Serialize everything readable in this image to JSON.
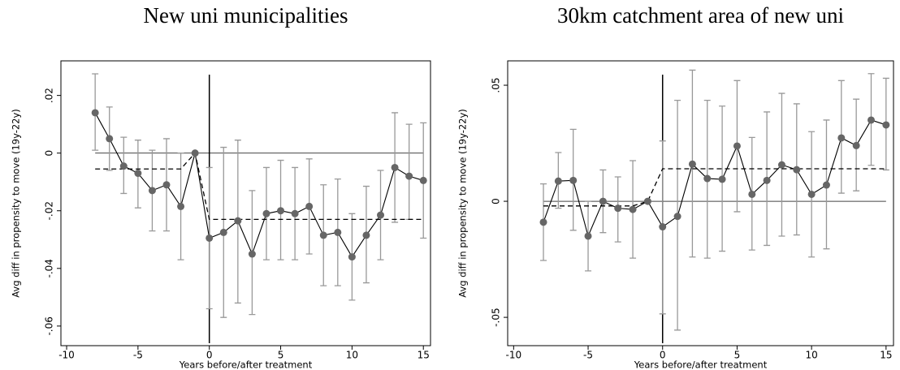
{
  "chart_data": [
    {
      "type": "line",
      "title": "New uni municipalities",
      "xlabel": "Years before/after treatment",
      "ylabel": "Avg diff in propensity to move (19y-22y)",
      "x": [
        -8,
        -7,
        -6,
        -5,
        -4,
        -3,
        -2,
        -1,
        0,
        1,
        2,
        3,
        4,
        5,
        6,
        7,
        8,
        9,
        10,
        11,
        12,
        13,
        14,
        15
      ],
      "values": [
        0.014,
        0.005,
        -0.0045,
        -0.007,
        -0.013,
        -0.011,
        -0.0185,
        0,
        -0.0295,
        -0.0275,
        -0.0235,
        -0.035,
        -0.021,
        -0.02,
        -0.021,
        -0.0185,
        -0.0285,
        -0.0275,
        -0.036,
        -0.0285,
        -0.0215,
        -0.005,
        -0.008,
        -0.0095
      ],
      "ci_low": [
        0.001,
        -0.006,
        -0.014,
        -0.019,
        -0.027,
        -0.027,
        -0.037,
        null,
        -0.054,
        -0.057,
        -0.052,
        -0.056,
        -0.037,
        -0.037,
        -0.037,
        -0.035,
        -0.046,
        -0.046,
        -0.051,
        -0.045,
        -0.037,
        -0.024,
        -0.023,
        -0.0295
      ],
      "ci_high": [
        0.0275,
        0.016,
        0.0055,
        0.0045,
        0.001,
        0.005,
        0,
        null,
        -0.005,
        0.002,
        0.0045,
        -0.013,
        -0.005,
        -0.0025,
        -0.005,
        -0.002,
        -0.011,
        -0.009,
        -0.021,
        -0.0115,
        -0.006,
        0.014,
        0.01,
        0.0105
      ],
      "fitted": [
        -0.0055,
        -0.0055,
        -0.0055,
        -0.0055,
        -0.0055,
        -0.0055,
        -0.0055,
        0,
        -0.023,
        -0.023,
        -0.023,
        -0.023,
        -0.023,
        -0.023,
        -0.023,
        -0.023,
        -0.023,
        -0.023,
        -0.023,
        -0.023,
        -0.023,
        -0.023,
        -0.023,
        -0.023
      ],
      "xline": 0,
      "yline": 0,
      "xlim": [
        -10.4,
        15.5
      ],
      "ylim": [
        -0.0668,
        0.032
      ],
      "xticks": [
        -10,
        -5,
        0,
        5,
        10,
        15
      ],
      "yticks": [
        {
          "value": 0.02,
          "label": ".02"
        },
        0,
        {
          "value": -0.02,
          "label": "-.02"
        },
        {
          "value": -0.04,
          "label": "-.04"
        },
        {
          "value": -0.06,
          "label": "-.06"
        }
      ],
      "color": "#666666"
    },
    {
      "type": "line",
      "title": "30km catchment area of new uni",
      "xlabel": "Years before/after treatment",
      "ylabel": "Avg diff in propensity to move (19y-22y)",
      "x": [
        -8,
        -7,
        -6,
        -5,
        -4,
        -3,
        -2,
        -1,
        0,
        1,
        2,
        3,
        4,
        5,
        6,
        7,
        8,
        9,
        10,
        11,
        12,
        13,
        14,
        15
      ],
      "values": [
        -0.009,
        0.0087,
        0.009,
        -0.015,
        0,
        -0.003,
        -0.0035,
        0,
        -0.011,
        -0.0065,
        0.016,
        0.0098,
        0.0095,
        0.0238,
        0.003,
        0.009,
        0.0157,
        0.0136,
        0.003,
        0.007,
        0.0273,
        0.024,
        0.035,
        0.0329
      ],
      "ci_low": [
        -0.0255,
        -0.003,
        -0.0125,
        -0.03,
        -0.0135,
        -0.0175,
        -0.0245,
        null,
        -0.0485,
        -0.0555,
        -0.024,
        -0.0245,
        -0.0215,
        -0.0045,
        -0.021,
        -0.019,
        -0.015,
        -0.0145,
        -0.024,
        -0.0205,
        0.0035,
        0.0045,
        0.0155,
        0.0135
      ],
      "ci_high": [
        0.0075,
        0.021,
        0.031,
        0,
        0.0135,
        0.0105,
        0.0175,
        null,
        0.026,
        0.0435,
        0.0565,
        0.0435,
        0.041,
        0.052,
        0.0275,
        0.0385,
        0.0465,
        0.042,
        0.03,
        0.035,
        0.052,
        0.044,
        0.055,
        0.053
      ],
      "fitted": [
        -0.002,
        -0.002,
        -0.002,
        -0.002,
        -0.002,
        -0.002,
        -0.002,
        0,
        0.014,
        0.014,
        0.014,
        0.014,
        0.014,
        0.014,
        0.014,
        0.014,
        0.014,
        0.014,
        0.014,
        0.014,
        0.014,
        0.014,
        0.014,
        0.014
      ],
      "xline": 0,
      "yline": 0,
      "xlim": [
        -10.4,
        15.5
      ],
      "ylim": [
        -0.0622,
        0.0605
      ],
      "xticks": [
        -10,
        -5,
        0,
        5,
        10,
        15
      ],
      "yticks": [
        {
          "value": 0.05,
          "label": ".05"
        },
        0,
        {
          "value": -0.05,
          "label": "-.05"
        }
      ],
      "color": "#666666"
    }
  ]
}
